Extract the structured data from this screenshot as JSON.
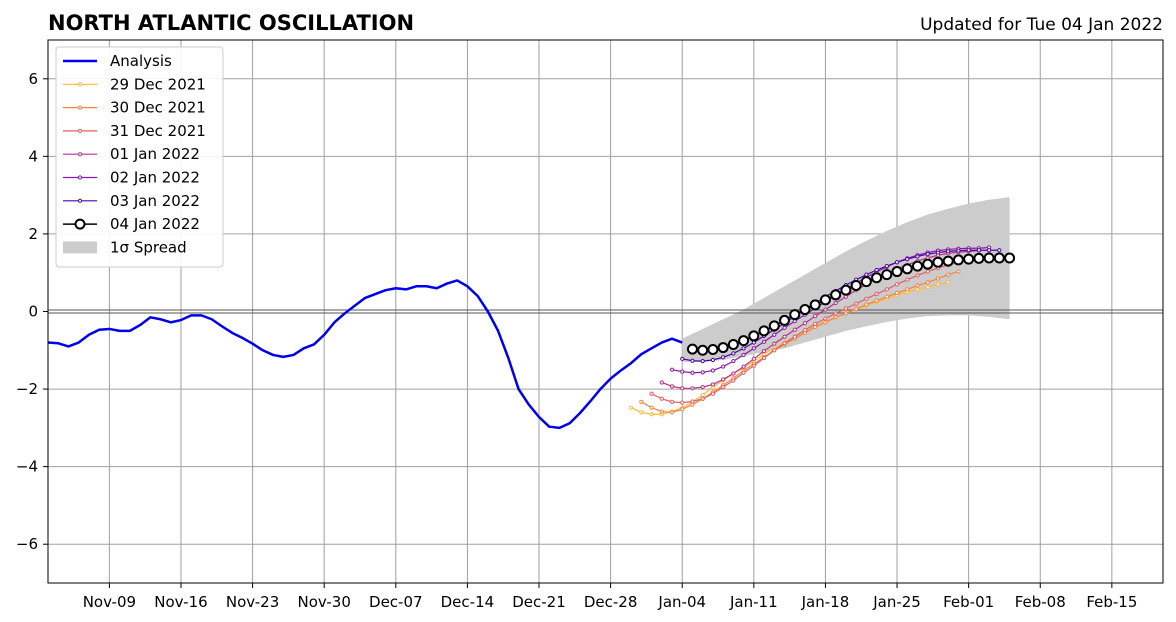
{
  "chart_data": {
    "type": "line",
    "title": "NORTH ATLANTIC OSCILLATION",
    "subtitle": "Updated for Tue 04 Jan 2022",
    "xlabel": "",
    "ylabel": "",
    "ylim": [
      -7,
      7
    ],
    "xlim": [
      "2021-11-03",
      "2022-02-20"
    ],
    "grid": true,
    "legend_position": "top-left",
    "x_ticks": [
      "2021-11-09",
      "2021-11-16",
      "2021-11-23",
      "2021-11-30",
      "2021-12-07",
      "2021-12-14",
      "2021-12-21",
      "2021-12-28",
      "2022-01-04",
      "2022-01-11",
      "2022-01-18",
      "2022-01-25",
      "2022-02-01",
      "2022-02-08",
      "2022-02-15"
    ],
    "x_tick_labels": [
      "Nov-09",
      "Nov-16",
      "Nov-23",
      "Nov-30",
      "Dec-07",
      "Dec-14",
      "Dec-21",
      "Dec-28",
      "Jan-04",
      "Jan-11",
      "Jan-18",
      "Jan-25",
      "Feb-01",
      "Feb-08",
      "Feb-15"
    ],
    "y_ticks": [
      -6,
      -4,
      -2,
      0,
      2,
      4,
      6
    ],
    "y_tick_labels": [
      "−6",
      "−4",
      "−2",
      "0",
      "2",
      "4",
      "6"
    ],
    "spread_label": "1σ Spread",
    "spread": {
      "color": "#cccccc",
      "x": [
        "2022-01-04",
        "2022-01-06",
        "2022-01-08",
        "2022-01-10",
        "2022-01-12",
        "2022-01-14",
        "2022-01-16",
        "2022-01-18",
        "2022-01-20",
        "2022-01-22",
        "2022-01-24",
        "2022-01-26",
        "2022-01-28",
        "2022-01-30",
        "2022-02-01",
        "2022-02-03",
        "2022-02-05"
      ],
      "upper": [
        -0.7,
        -0.45,
        -0.2,
        0.05,
        0.35,
        0.65,
        0.95,
        1.25,
        1.55,
        1.82,
        2.08,
        2.3,
        2.5,
        2.65,
        2.78,
        2.88,
        2.95
      ],
      "lower": [
        -1.3,
        -1.3,
        -1.25,
        -1.15,
        -1.05,
        -0.95,
        -0.8,
        -0.65,
        -0.5,
        -0.38,
        -0.27,
        -0.18,
        -0.12,
        -0.1,
        -0.1,
        -0.14,
        -0.2
      ]
    },
    "series": [
      {
        "name": "Analysis",
        "color": "#0000ee",
        "width": 2.5,
        "markers": false,
        "x": [
          "2021-11-03",
          "2021-11-04",
          "2021-11-05",
          "2021-11-06",
          "2021-11-07",
          "2021-11-08",
          "2021-11-09",
          "2021-11-10",
          "2021-11-11",
          "2021-11-12",
          "2021-11-13",
          "2021-11-14",
          "2021-11-15",
          "2021-11-16",
          "2021-11-17",
          "2021-11-18",
          "2021-11-19",
          "2021-11-20",
          "2021-11-21",
          "2021-11-22",
          "2021-11-23",
          "2021-11-24",
          "2021-11-25",
          "2021-11-26",
          "2021-11-27",
          "2021-11-28",
          "2021-11-29",
          "2021-11-30",
          "2021-12-01",
          "2021-12-02",
          "2021-12-03",
          "2021-12-04",
          "2021-12-05",
          "2021-12-06",
          "2021-12-07",
          "2021-12-08",
          "2021-12-09",
          "2021-12-10",
          "2021-12-11",
          "2021-12-12",
          "2021-12-13",
          "2021-12-14",
          "2021-12-15",
          "2021-12-16",
          "2021-12-17",
          "2021-12-18",
          "2021-12-19",
          "2021-12-20",
          "2021-12-21",
          "2021-12-22",
          "2021-12-23",
          "2021-12-24",
          "2021-12-25",
          "2021-12-26",
          "2021-12-27",
          "2021-12-28",
          "2021-12-29",
          "2021-12-30",
          "2021-12-31",
          "2022-01-01",
          "2022-01-02",
          "2022-01-03",
          "2022-01-04"
        ],
        "y": [
          -0.8,
          -0.82,
          -0.9,
          -0.8,
          -0.6,
          -0.47,
          -0.45,
          -0.5,
          -0.5,
          -0.35,
          -0.15,
          -0.2,
          -0.28,
          -0.22,
          -0.1,
          -0.1,
          -0.2,
          -0.38,
          -0.55,
          -0.68,
          -0.83,
          -1.0,
          -1.12,
          -1.17,
          -1.12,
          -0.95,
          -0.85,
          -0.6,
          -0.28,
          -0.05,
          0.15,
          0.35,
          0.45,
          0.55,
          0.6,
          0.57,
          0.65,
          0.65,
          0.6,
          0.72,
          0.8,
          0.65,
          0.4,
          0.0,
          -0.5,
          -1.2,
          -2.0,
          -2.4,
          -2.72,
          -2.97,
          -3.0,
          -2.88,
          -2.62,
          -2.32,
          -2.0,
          -1.73,
          -1.52,
          -1.33,
          -1.1,
          -0.95,
          -0.8,
          -0.7,
          -0.8
        ]
      },
      {
        "name": "29 Dec 2021",
        "color": "#fcb937",
        "width": 1.2,
        "markers": "small",
        "x": [
          "2021-12-30",
          "2021-12-31",
          "2022-01-01",
          "2022-01-02",
          "2022-01-03",
          "2022-01-04",
          "2022-01-05",
          "2022-01-06",
          "2022-01-07",
          "2022-01-08",
          "2022-01-09",
          "2022-01-10",
          "2022-01-11",
          "2022-01-12",
          "2022-01-13",
          "2022-01-14",
          "2022-01-15",
          "2022-01-16",
          "2022-01-17",
          "2022-01-18",
          "2022-01-19",
          "2022-01-20",
          "2022-01-21",
          "2022-01-22",
          "2022-01-23",
          "2022-01-24",
          "2022-01-25",
          "2022-01-26",
          "2022-01-27",
          "2022-01-28",
          "2022-01-29",
          "2022-01-30"
        ],
        "y": [
          -2.48,
          -2.6,
          -2.65,
          -2.65,
          -2.58,
          -2.48,
          -2.33,
          -2.15,
          -1.95,
          -1.78,
          -1.6,
          -1.45,
          -1.28,
          -1.1,
          -0.95,
          -0.8,
          -0.65,
          -0.5,
          -0.38,
          -0.27,
          -0.15,
          -0.05,
          0.05,
          0.15,
          0.25,
          0.33,
          0.43,
          0.5,
          0.57,
          0.63,
          0.7,
          0.75
        ]
      },
      {
        "name": "30 Dec 2021",
        "color": "#f7813e",
        "width": 1.2,
        "markers": "small",
        "x": [
          "2021-12-31",
          "2022-01-01",
          "2022-01-02",
          "2022-01-03",
          "2022-01-04",
          "2022-01-05",
          "2022-01-06",
          "2022-01-07",
          "2022-01-08",
          "2022-01-09",
          "2022-01-10",
          "2022-01-11",
          "2022-01-12",
          "2022-01-13",
          "2022-01-14",
          "2022-01-15",
          "2022-01-16",
          "2022-01-17",
          "2022-01-18",
          "2022-01-19",
          "2022-01-20",
          "2022-01-21",
          "2022-01-22",
          "2022-01-23",
          "2022-01-24",
          "2022-01-25",
          "2022-01-26",
          "2022-01-27",
          "2022-01-28",
          "2022-01-29",
          "2022-01-30",
          "2022-01-31"
        ],
        "y": [
          -2.33,
          -2.48,
          -2.58,
          -2.6,
          -2.52,
          -2.4,
          -2.25,
          -2.08,
          -1.9,
          -1.72,
          -1.52,
          -1.35,
          -1.18,
          -1.0,
          -0.85,
          -0.7,
          -0.55,
          -0.4,
          -0.28,
          -0.15,
          -0.05,
          0.07,
          0.18,
          0.28,
          0.38,
          0.48,
          0.57,
          0.67,
          0.75,
          0.85,
          0.95,
          1.03
        ]
      },
      {
        "name": "31 Dec 2021",
        "color": "#e15f62",
        "width": 1.2,
        "markers": "small",
        "x": [
          "2022-01-01",
          "2022-01-02",
          "2022-01-03",
          "2022-01-04",
          "2022-01-05",
          "2022-01-06",
          "2022-01-07",
          "2022-01-08",
          "2022-01-09",
          "2022-01-10",
          "2022-01-11",
          "2022-01-12",
          "2022-01-13",
          "2022-01-14",
          "2022-01-15",
          "2022-01-16",
          "2022-01-17",
          "2022-01-18",
          "2022-01-19",
          "2022-01-20",
          "2022-01-21",
          "2022-01-22",
          "2022-01-23",
          "2022-01-24",
          "2022-01-25",
          "2022-01-26",
          "2022-01-27",
          "2022-01-28",
          "2022-01-29",
          "2022-01-30",
          "2022-01-31",
          "2022-02-01"
        ],
        "y": [
          -2.12,
          -2.25,
          -2.33,
          -2.35,
          -2.32,
          -2.25,
          -2.12,
          -1.95,
          -1.78,
          -1.58,
          -1.4,
          -1.2,
          -1.0,
          -0.82,
          -0.65,
          -0.48,
          -0.32,
          -0.18,
          -0.05,
          0.08,
          0.2,
          0.33,
          0.45,
          0.57,
          0.7,
          0.82,
          0.93,
          1.03,
          1.12,
          1.2,
          1.27,
          1.33
        ]
      },
      {
        "name": "01 Jan 2022",
        "color": "#b7308b",
        "width": 1.2,
        "markers": "small",
        "x": [
          "2022-01-02",
          "2022-01-03",
          "2022-01-04",
          "2022-01-05",
          "2022-01-06",
          "2022-01-07",
          "2022-01-08",
          "2022-01-09",
          "2022-01-10",
          "2022-01-11",
          "2022-01-12",
          "2022-01-13",
          "2022-01-14",
          "2022-01-15",
          "2022-01-16",
          "2022-01-17",
          "2022-01-18",
          "2022-01-19",
          "2022-01-20",
          "2022-01-21",
          "2022-01-22",
          "2022-01-23",
          "2022-01-24",
          "2022-01-25",
          "2022-01-26",
          "2022-01-27",
          "2022-01-28",
          "2022-01-29",
          "2022-01-30",
          "2022-01-31",
          "2022-02-01",
          "2022-02-02"
        ],
        "y": [
          -1.83,
          -1.93,
          -1.98,
          -1.98,
          -1.95,
          -1.88,
          -1.75,
          -1.6,
          -1.42,
          -1.22,
          -1.02,
          -0.83,
          -0.65,
          -0.47,
          -0.3,
          -0.12,
          0.05,
          0.22,
          0.38,
          0.55,
          0.7,
          0.85,
          0.98,
          1.1,
          1.2,
          1.3,
          1.38,
          1.45,
          1.5,
          1.53,
          1.55,
          1.57
        ]
      },
      {
        "name": "02 Jan 2022",
        "color": "#8a17ab",
        "width": 1.2,
        "markers": "small",
        "x": [
          "2022-01-03",
          "2022-01-04",
          "2022-01-05",
          "2022-01-06",
          "2022-01-07",
          "2022-01-08",
          "2022-01-09",
          "2022-01-10",
          "2022-01-11",
          "2022-01-12",
          "2022-01-13",
          "2022-01-14",
          "2022-01-15",
          "2022-01-16",
          "2022-01-17",
          "2022-01-18",
          "2022-01-19",
          "2022-01-20",
          "2022-01-21",
          "2022-01-22",
          "2022-01-23",
          "2022-01-24",
          "2022-01-25",
          "2022-01-26",
          "2022-01-27",
          "2022-01-28",
          "2022-01-29",
          "2022-01-30",
          "2022-01-31",
          "2022-02-01",
          "2022-02-02",
          "2022-02-03"
        ],
        "y": [
          -1.5,
          -1.55,
          -1.58,
          -1.57,
          -1.52,
          -1.42,
          -1.28,
          -1.12,
          -0.95,
          -0.78,
          -0.6,
          -0.42,
          -0.25,
          -0.08,
          0.08,
          0.25,
          0.42,
          0.58,
          0.73,
          0.88,
          1.02,
          1.15,
          1.27,
          1.37,
          1.45,
          1.52,
          1.57,
          1.6,
          1.62,
          1.63,
          1.63,
          1.65
        ]
      },
      {
        "name": "03 Jan 2022",
        "color": "#4e07a0",
        "width": 1.2,
        "markers": "small",
        "x": [
          "2022-01-04",
          "2022-01-05",
          "2022-01-06",
          "2022-01-07",
          "2022-01-08",
          "2022-01-09",
          "2022-01-10",
          "2022-01-11",
          "2022-01-12",
          "2022-01-13",
          "2022-01-14",
          "2022-01-15",
          "2022-01-16",
          "2022-01-17",
          "2022-01-18",
          "2022-01-19",
          "2022-01-20",
          "2022-01-21",
          "2022-01-22",
          "2022-01-23",
          "2022-01-24",
          "2022-01-25",
          "2022-01-26",
          "2022-01-27",
          "2022-01-28",
          "2022-01-29",
          "2022-01-30",
          "2022-01-31",
          "2022-02-01",
          "2022-02-02",
          "2022-02-03",
          "2022-02-04"
        ],
        "y": [
          -1.22,
          -1.27,
          -1.28,
          -1.25,
          -1.18,
          -1.08,
          -0.95,
          -0.8,
          -0.63,
          -0.47,
          -0.3,
          -0.13,
          0.05,
          0.22,
          0.38,
          0.53,
          0.68,
          0.82,
          0.95,
          1.07,
          1.17,
          1.27,
          1.35,
          1.42,
          1.48,
          1.52,
          1.55,
          1.57,
          1.58,
          1.58,
          1.58,
          1.58
        ]
      },
      {
        "name": "04 Jan 2022",
        "color": "#000000",
        "width": 1.5,
        "markers": "large",
        "x": [
          "2022-01-05",
          "2022-01-06",
          "2022-01-07",
          "2022-01-08",
          "2022-01-09",
          "2022-01-10",
          "2022-01-11",
          "2022-01-12",
          "2022-01-13",
          "2022-01-14",
          "2022-01-15",
          "2022-01-16",
          "2022-01-17",
          "2022-01-18",
          "2022-01-19",
          "2022-01-20",
          "2022-01-21",
          "2022-01-22",
          "2022-01-23",
          "2022-01-24",
          "2022-01-25",
          "2022-01-26",
          "2022-01-27",
          "2022-01-28",
          "2022-01-29",
          "2022-01-30",
          "2022-01-31",
          "2022-02-01",
          "2022-02-02",
          "2022-02-03",
          "2022-02-04",
          "2022-02-05"
        ],
        "y": [
          -0.97,
          -1.0,
          -0.98,
          -0.93,
          -0.85,
          -0.75,
          -0.63,
          -0.5,
          -0.37,
          -0.23,
          -0.08,
          0.05,
          0.17,
          0.3,
          0.43,
          0.55,
          0.67,
          0.77,
          0.87,
          0.95,
          1.03,
          1.1,
          1.17,
          1.22,
          1.27,
          1.3,
          1.33,
          1.35,
          1.37,
          1.38,
          1.38,
          1.38
        ]
      }
    ]
  }
}
